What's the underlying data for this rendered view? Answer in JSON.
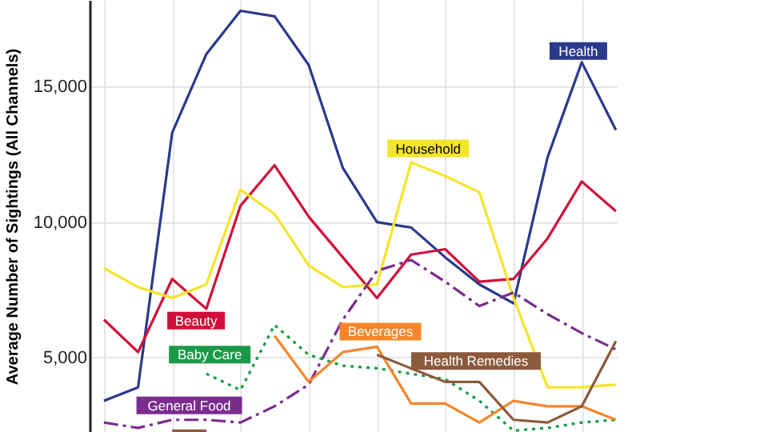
{
  "chart_data": {
    "type": "line",
    "ylabel": "Average Number of Sightings (All Channels)",
    "categories": [
      null,
      null,
      null,
      null,
      null,
      null,
      null,
      null,
      null,
      null,
      null,
      null,
      null,
      null,
      null,
      null
    ],
    "ylim": [
      2250,
      18200
    ],
    "yticks": [
      {
        "value": 5000,
        "label": "5,000"
      },
      {
        "value": 10000,
        "label": "10,000"
      },
      {
        "value": 15000,
        "label": "15,000"
      }
    ],
    "grid": true,
    "tick_labels": "y",
    "series": [
      {
        "name": "Health",
        "color": "#2b3a8c",
        "values": [
          3400,
          3900,
          13300,
          16200,
          17800,
          17600,
          15800,
          12000,
          10000,
          9800,
          8700,
          7700,
          7000,
          12400,
          15900,
          13400
        ]
      },
      {
        "name": "Beauty",
        "color": "#d0103a",
        "values": [
          6400,
          5200,
          7900,
          6800,
          10600,
          12100,
          10200,
          8700,
          7200,
          8800,
          9000,
          7800,
          7900,
          9400,
          11500,
          10400
        ]
      },
      {
        "name": "Household",
        "color": "#f5e52a",
        "values": [
          8300,
          7600,
          7200,
          7700,
          11200,
          10300,
          8400,
          7600,
          7700,
          12200,
          11700,
          11100,
          7200,
          3900,
          3900,
          4000
        ]
      },
      {
        "name": "General Food",
        "color": "#7b2d8e",
        "line_style": "dashed",
        "values": [
          2600,
          2400,
          2700,
          2700,
          2600,
          3200,
          4000,
          6400,
          8200,
          8600,
          7800,
          6900,
          7400,
          6600,
          5900,
          5300
        ]
      },
      {
        "name": "Baby Care",
        "color": "#1a9a48",
        "line_style": "dotted",
        "values": [
          null,
          null,
          null,
          4400,
          3800,
          6200,
          5100,
          4700,
          4600,
          4400,
          4200,
          3400,
          2300,
          2400,
          2600,
          2700
        ]
      },
      {
        "name": "Beverages",
        "color": "#f7862a",
        "values": [
          null,
          null,
          null,
          null,
          null,
          5800,
          4100,
          5200,
          5400,
          3300,
          3300,
          2600,
          3400,
          3200,
          3200,
          2700
        ]
      },
      {
        "name": "Health Remedies",
        "color": "#8b5a3c",
        "values": [
          null,
          null,
          2300,
          2300,
          null,
          null,
          null,
          null,
          5100,
          4600,
          4100,
          4100,
          2700,
          2600,
          3200,
          5600
        ]
      }
    ]
  }
}
